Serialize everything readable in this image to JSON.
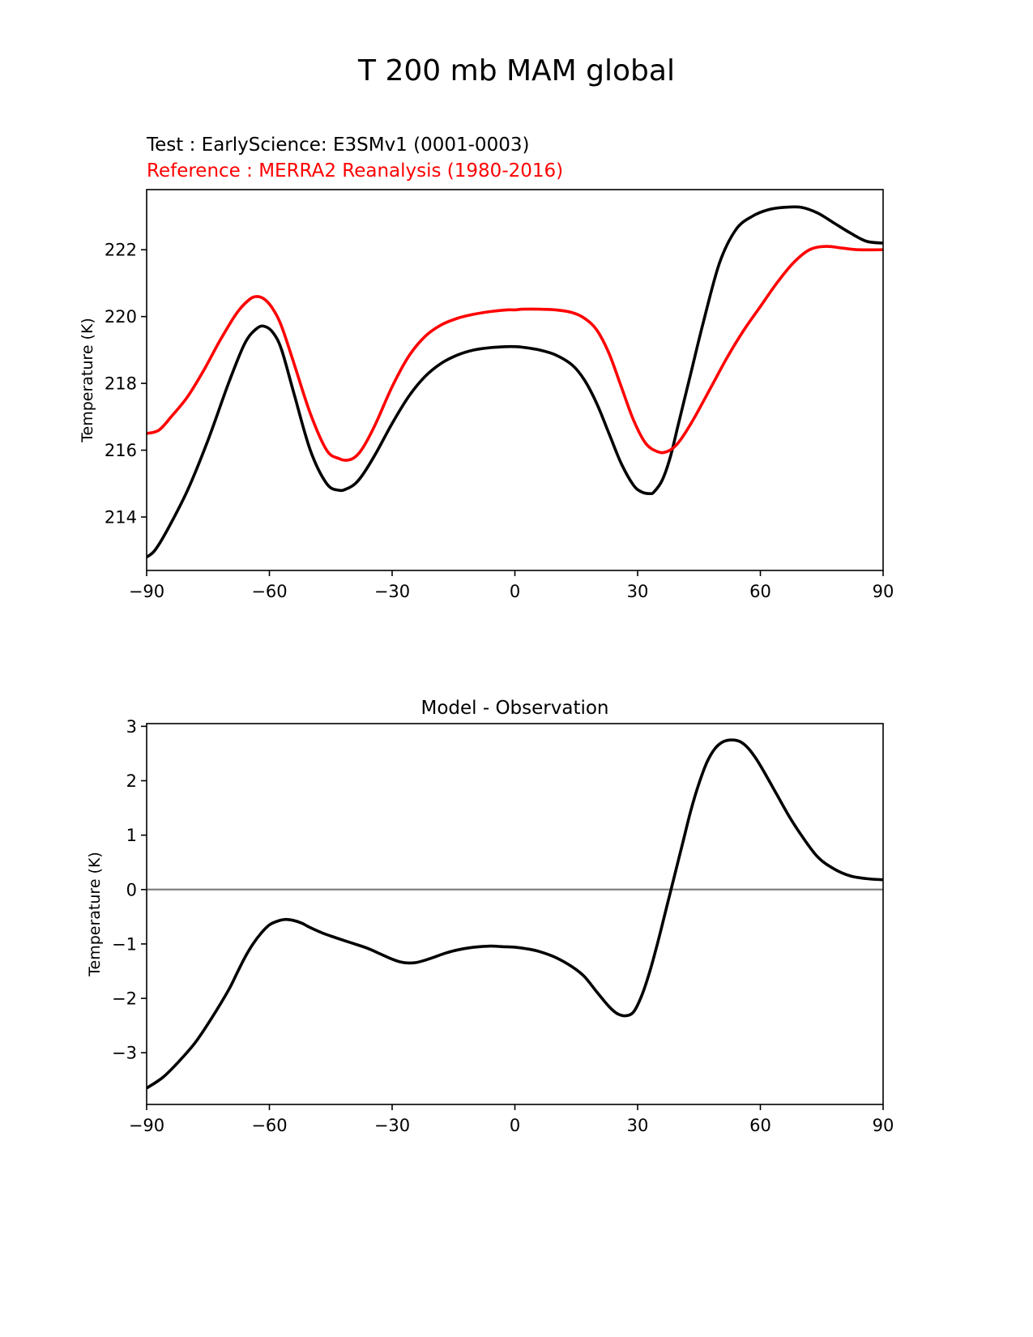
{
  "figure": {
    "title": "T 200 mb MAM global",
    "test_label": "Test : EarlyScience: E3SMv1 (0001-0003)",
    "reference_label": "Reference : MERRA2 Reanalysis (1980-2016)",
    "colors": {
      "test": "#000000",
      "reference": "#ff0000",
      "zero_line": "#808080",
      "axes": "#000000"
    }
  },
  "chart_data": [
    {
      "type": "line",
      "title": "",
      "xlabel": "",
      "ylabel": "Temperature (K)",
      "xlim": [
        -90,
        90
      ],
      "ylim": [
        212.4,
        223.8
      ],
      "xticks": [
        -90,
        -60,
        -30,
        0,
        30,
        60,
        90
      ],
      "xtick_labels": [
        "−90",
        "−60",
        "−30",
        "0",
        "30",
        "60",
        "90"
      ],
      "yticks": [
        214,
        216,
        218,
        220,
        222
      ],
      "ytick_labels": [
        "214",
        "216",
        "218",
        "220",
        "222"
      ],
      "grid": false,
      "series": [
        {
          "name": "Test : EarlyScience: E3SMv1 (0001-0003)",
          "color": "#000000",
          "x": [
            -90,
            -88,
            -85,
            -80,
            -75,
            -70,
            -66,
            -63,
            -61,
            -59,
            -57,
            -54,
            -50,
            -46,
            -43,
            -41,
            -39,
            -37,
            -34,
            -30,
            -26,
            -22,
            -18,
            -14,
            -10,
            -6,
            -2,
            0,
            2,
            6,
            10,
            14,
            17,
            20,
            23,
            26,
            29,
            31,
            33,
            34,
            36,
            38,
            40,
            43,
            46,
            50,
            54,
            58,
            62,
            66,
            70,
            74,
            78,
            82,
            86,
            90
          ],
          "y": [
            212.8,
            213.0,
            213.6,
            214.8,
            216.3,
            218.0,
            219.2,
            219.65,
            219.7,
            219.5,
            219.0,
            217.7,
            216.0,
            215.0,
            214.8,
            214.85,
            215.0,
            215.3,
            215.9,
            216.8,
            217.6,
            218.2,
            218.6,
            218.85,
            219.0,
            219.07,
            219.1,
            219.1,
            219.08,
            219.0,
            218.85,
            218.55,
            218.1,
            217.4,
            216.5,
            215.6,
            214.95,
            214.75,
            214.7,
            214.75,
            215.1,
            215.8,
            216.8,
            218.3,
            219.8,
            221.6,
            222.6,
            223.0,
            223.2,
            223.27,
            223.27,
            223.1,
            222.8,
            222.5,
            222.25,
            222.2
          ]
        },
        {
          "name": "Reference : MERRA2 Reanalysis (1980-2016)",
          "color": "#ff0000",
          "x": [
            -90,
            -87,
            -84,
            -80,
            -76,
            -72,
            -68,
            -65,
            -63,
            -61,
            -59,
            -57,
            -54,
            -50,
            -46,
            -43,
            -41,
            -39,
            -37,
            -34,
            -30,
            -26,
            -22,
            -18,
            -14,
            -10,
            -6,
            -2,
            0,
            2,
            6,
            10,
            14,
            17,
            20,
            23,
            26,
            29,
            32,
            35,
            37,
            39,
            41,
            44,
            48,
            52,
            56,
            60,
            64,
            68,
            72,
            76,
            80,
            84,
            90
          ],
          "y": [
            216.5,
            216.6,
            217.0,
            217.6,
            218.4,
            219.3,
            220.1,
            220.5,
            220.6,
            220.5,
            220.2,
            219.7,
            218.6,
            217.1,
            216.0,
            215.75,
            215.7,
            215.8,
            216.1,
            216.8,
            217.9,
            218.8,
            219.4,
            219.75,
            219.95,
            220.07,
            220.15,
            220.2,
            220.2,
            220.22,
            220.22,
            220.2,
            220.12,
            219.95,
            219.6,
            218.9,
            217.9,
            216.9,
            216.2,
            215.95,
            215.95,
            216.1,
            216.4,
            217.0,
            217.9,
            218.8,
            219.6,
            220.3,
            221.0,
            221.6,
            222.0,
            222.1,
            222.05,
            222.0,
            222.0
          ]
        }
      ]
    },
    {
      "type": "line",
      "title": "Model - Observation",
      "xlabel": "",
      "ylabel": "Temperature (K)",
      "xlim": [
        -90,
        90
      ],
      "ylim": [
        -3.95,
        3.05
      ],
      "xticks": [
        -90,
        -60,
        -30,
        0,
        30,
        60,
        90
      ],
      "xtick_labels": [
        "−90",
        "−60",
        "−30",
        "0",
        "30",
        "60",
        "90"
      ],
      "yticks": [
        -3,
        -2,
        -1,
        0,
        1,
        2,
        3
      ],
      "ytick_labels": [
        "−3",
        "−2",
        "−1",
        "0",
        "1",
        "2",
        "3"
      ],
      "grid": false,
      "reference_line": {
        "y": 0,
        "color": "#808080"
      },
      "series": [
        {
          "name": "",
          "color": "#000000",
          "x": [
            -90,
            -86,
            -82,
            -78,
            -74,
            -70,
            -68,
            -66,
            -64,
            -62,
            -60,
            -58,
            -56,
            -54,
            -52,
            -50,
            -47,
            -44,
            -40,
            -36,
            -33,
            -30,
            -28,
            -26,
            -24,
            -22,
            -20,
            -17,
            -14,
            -10,
            -6,
            -3,
            0,
            3,
            6,
            10,
            14,
            17,
            20,
            23,
            25,
            27,
            29,
            31,
            33,
            35,
            37,
            39,
            41,
            43,
            45,
            47,
            49,
            51,
            53,
            55,
            57,
            59,
            61,
            64,
            67,
            70,
            74,
            78,
            82,
            86,
            90
          ],
          "y": [
            -3.65,
            -3.45,
            -3.15,
            -2.8,
            -2.35,
            -1.85,
            -1.55,
            -1.25,
            -1.0,
            -0.8,
            -0.65,
            -0.58,
            -0.55,
            -0.57,
            -0.62,
            -0.7,
            -0.8,
            -0.88,
            -0.98,
            -1.08,
            -1.18,
            -1.28,
            -1.33,
            -1.35,
            -1.34,
            -1.3,
            -1.25,
            -1.17,
            -1.11,
            -1.06,
            -1.04,
            -1.05,
            -1.06,
            -1.09,
            -1.14,
            -1.25,
            -1.42,
            -1.6,
            -1.88,
            -2.15,
            -2.28,
            -2.32,
            -2.25,
            -1.95,
            -1.5,
            -0.95,
            -0.35,
            0.25,
            0.85,
            1.45,
            1.95,
            2.35,
            2.6,
            2.72,
            2.75,
            2.72,
            2.6,
            2.4,
            2.15,
            1.75,
            1.35,
            1.0,
            0.6,
            0.38,
            0.25,
            0.2,
            0.18
          ]
        }
      ]
    }
  ]
}
